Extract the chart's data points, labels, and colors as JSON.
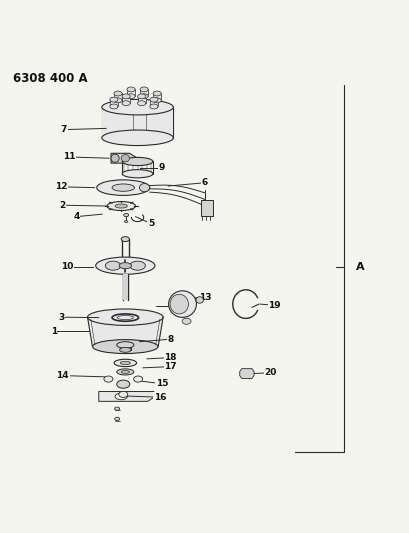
{
  "title": "6308 400 A",
  "bg_color": "#f5f5f0",
  "line_color": "#2a2a2a",
  "label_color": "#111111",
  "fig_width": 4.1,
  "fig_height": 5.33,
  "dpi": 100
}
